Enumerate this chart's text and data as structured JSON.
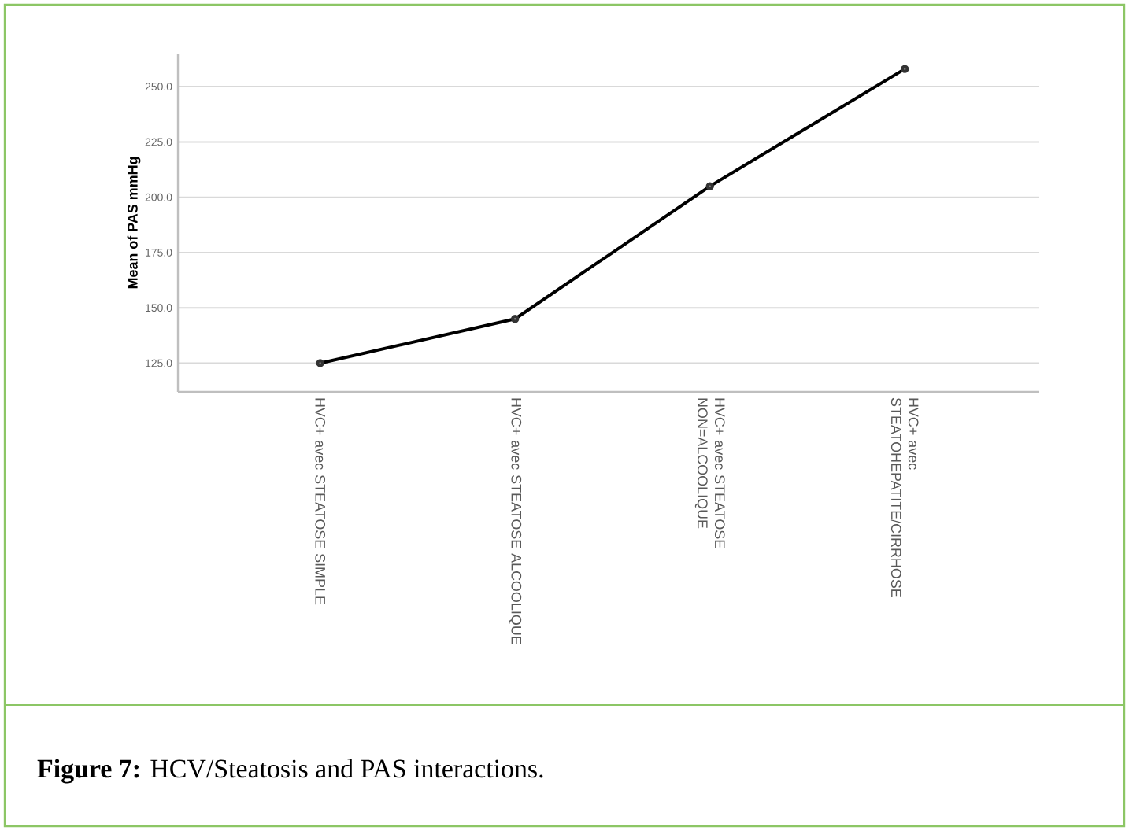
{
  "chart_data": {
    "type": "line",
    "ylabel": "Mean of PAS mmHg",
    "categories": [
      "HVC+ avec STEATOSE SIMPLE",
      "HVC+ avec STEATOSE ALCOOLIQUE",
      "HVC+ avec STEATOSE NON=ALCOOLIQUE",
      "HVC+ avec STEATOHEPATITE/CIRRHOSE"
    ],
    "series": [
      {
        "color": "#000000",
        "values": [
          125,
          145,
          205,
          258
        ]
      }
    ],
    "ylim": [
      112,
      265
    ],
    "yticks": [
      {
        "value": 125,
        "label": "125.0"
      },
      {
        "value": 150,
        "label": "150.0"
      },
      {
        "value": 175,
        "label": "175.0"
      },
      {
        "value": 200,
        "label": "200.0"
      },
      {
        "value": 225,
        "label": "225.0"
      },
      {
        "value": 250,
        "label": "250.0"
      }
    ],
    "grid": "y",
    "marker": "circle",
    "line_style": "solid",
    "annotations": [
      "**Figure 7:** HCV/Steatosis and PAS interactions."
    ]
  }
}
